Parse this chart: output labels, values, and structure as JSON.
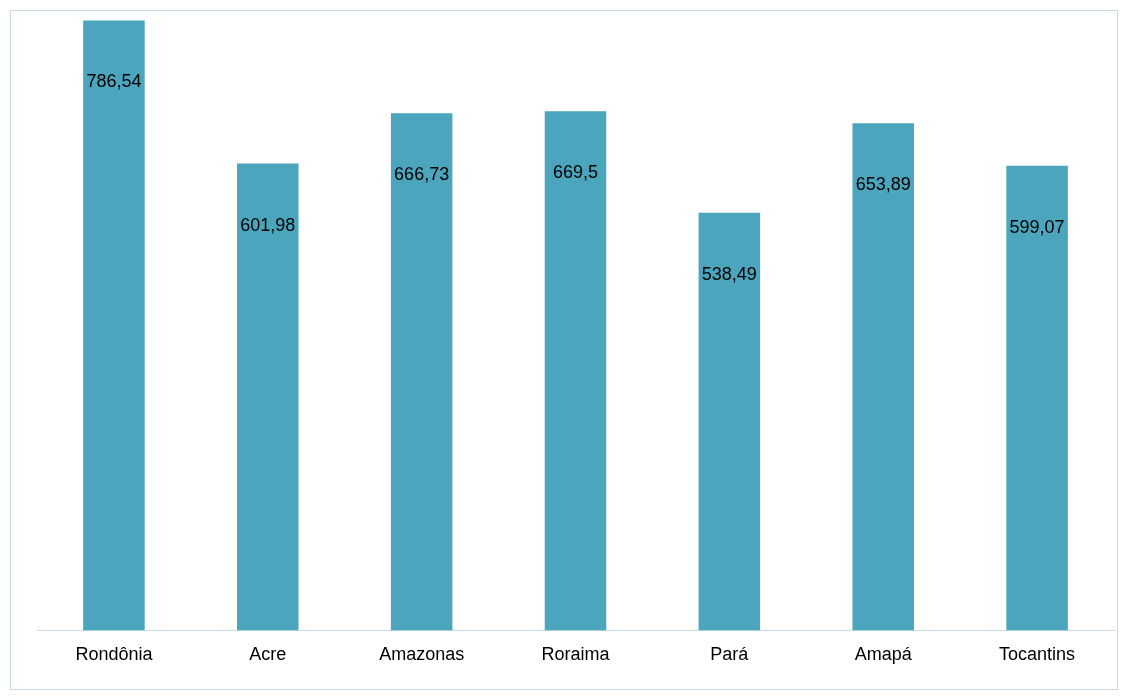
{
  "chart_data": {
    "type": "bar",
    "categories": [
      "Rondônia",
      "Acre",
      "Amazonas",
      "Roraima",
      "Pará",
      "Amapá",
      "Tocantins"
    ],
    "values": [
      786.54,
      601.98,
      666.73,
      669.5,
      538.49,
      653.89,
      599.07
    ],
    "value_labels": [
      "786,54",
      "601,98",
      "666,73",
      "669,5",
      "538,49",
      "653,89",
      "599,07"
    ],
    "color": "#4aa5bd",
    "grid": false,
    "legend": false
  }
}
